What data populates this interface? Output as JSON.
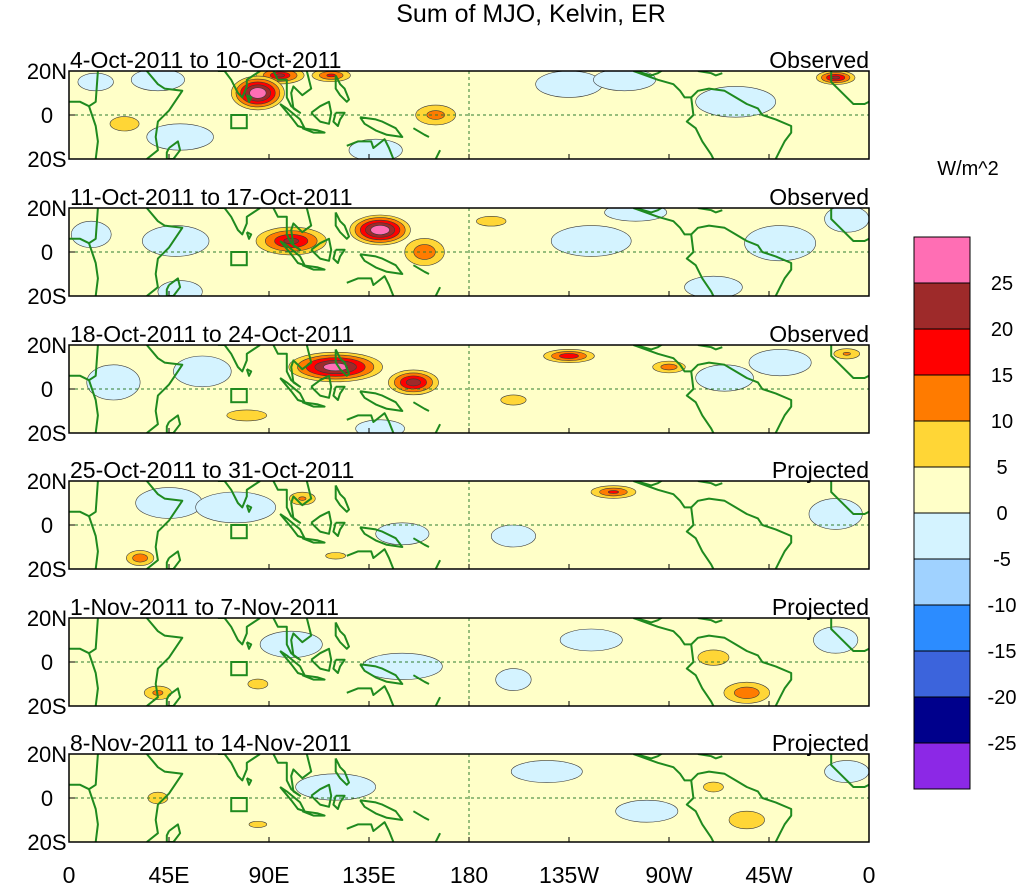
{
  "title": "Sum of MJO, Kelvin, ER",
  "units": "W/m^2",
  "panels": [
    {
      "period": "4-Oct-2011 to 10-Oct-2011",
      "status": "Observed"
    },
    {
      "period": "11-Oct-2011 to 17-Oct-2011",
      "status": "Observed"
    },
    {
      "period": "18-Oct-2011 to 24-Oct-2011",
      "status": "Observed"
    },
    {
      "period": "25-Oct-2011 to 31-Oct-2011",
      "status": "Projected"
    },
    {
      "period": "1-Nov-2011 to 7-Nov-2011",
      "status": "Projected"
    },
    {
      "period": "8-Nov-2011 to 14-Nov-2011",
      "status": "Projected"
    }
  ],
  "lat_labels": [
    "20N",
    "0",
    "20S"
  ],
  "lon_labels": [
    "0",
    "45E",
    "90E",
    "135E",
    "180",
    "135W",
    "90W",
    "45W",
    "0"
  ],
  "colorbar": {
    "colors": [
      "#ff6eb4",
      "#9e2a2a",
      "#ff0000",
      "#ff7b00",
      "#ffd636",
      "#ffffc8",
      "#d4f3ff",
      "#a0d2ff",
      "#2c8cff",
      "#3c64dc",
      "#00008c",
      "#8c28e6"
    ],
    "labels": [
      "25",
      "20",
      "15",
      "10",
      "5",
      "0",
      "-5",
      "-10",
      "-15",
      "-20",
      "-25"
    ]
  },
  "chart_data": {
    "type": "heatmap",
    "title": "Sum of MJO, Kelvin, ER",
    "units": "W/m^2",
    "x_axis": "Longitude",
    "xlim": [
      0,
      360
    ],
    "y_axis": "Latitude",
    "ylim": [
      -20,
      20
    ],
    "levels": [
      -25,
      -20,
      -15,
      -10,
      -5,
      0,
      5,
      10,
      15,
      20,
      25
    ],
    "background_value": 1,
    "anomalies": [
      [
        {
          "lon": 85,
          "lat": 10,
          "value": 32,
          "rlon": 14,
          "rlat": 9
        },
        {
          "lon": 95,
          "lat": 18,
          "value": 20,
          "rlon": 14,
          "rlat": 5
        },
        {
          "lon": 118,
          "lat": 18,
          "value": 16,
          "rlon": 12,
          "rlat": 4
        },
        {
          "lon": 165,
          "lat": 0,
          "value": 12,
          "rlon": 14,
          "rlat": 7
        },
        {
          "lon": 250,
          "lat": 16,
          "value": -28,
          "rlon": 14,
          "rlat": 5
        },
        {
          "lon": 225,
          "lat": 14,
          "value": -12,
          "rlon": 15,
          "rlat": 6
        },
        {
          "lon": 40,
          "lat": 16,
          "value": -18,
          "rlon": 12,
          "rlat": 5
        },
        {
          "lon": 12,
          "lat": 15,
          "value": -18,
          "rlon": 8,
          "rlat": 4
        },
        {
          "lon": 50,
          "lat": -10,
          "value": -10,
          "rlon": 15,
          "rlat": 6
        },
        {
          "lon": 300,
          "lat": 6,
          "value": -10,
          "rlon": 18,
          "rlat": 7
        },
        {
          "lon": 345,
          "lat": 17,
          "value": 22,
          "rlon": 11,
          "rlat": 4
        },
        {
          "lon": 138,
          "lat": -16,
          "value": -14,
          "rlon": 12,
          "rlat": 5
        },
        {
          "lon": 25,
          "lat": -4,
          "value": 9,
          "rlon": 12,
          "rlat": 6
        }
      ],
      [
        {
          "lon": 100,
          "lat": 5,
          "value": 22,
          "rlon": 20,
          "rlat": 8
        },
        {
          "lon": 140,
          "lat": 10,
          "value": 32,
          "rlon": 16,
          "rlat": 8
        },
        {
          "lon": 160,
          "lat": 0,
          "value": 14,
          "rlon": 13,
          "rlat": 9
        },
        {
          "lon": 190,
          "lat": 14,
          "value": 7,
          "rlon": 15,
          "rlat": 5
        },
        {
          "lon": 48,
          "lat": 5,
          "value": -15,
          "rlon": 15,
          "rlat": 7
        },
        {
          "lon": 50,
          "lat": -18,
          "value": -26,
          "rlon": 10,
          "rlat": 5
        },
        {
          "lon": 255,
          "lat": 18,
          "value": -24,
          "rlon": 14,
          "rlat": 4
        },
        {
          "lon": 290,
          "lat": -16,
          "value": -22,
          "rlon": 13,
          "rlat": 5
        },
        {
          "lon": 320,
          "lat": 4,
          "value": -12,
          "rlon": 16,
          "rlat": 8
        },
        {
          "lon": 235,
          "lat": 5,
          "value": -8,
          "rlon": 18,
          "rlat": 7
        },
        {
          "lon": 10,
          "lat": 8,
          "value": -10,
          "rlon": 9,
          "rlat": 6
        },
        {
          "lon": 350,
          "lat": 15,
          "value": -20,
          "rlon": 10,
          "rlat": 6
        }
      ],
      [
        {
          "lon": 120,
          "lat": 10,
          "value": 30,
          "rlon": 25,
          "rlat": 8
        },
        {
          "lon": 155,
          "lat": 3,
          "value": 24,
          "rlon": 14,
          "rlat": 7
        },
        {
          "lon": 225,
          "lat": 15,
          "value": 19,
          "rlon": 15,
          "rlat": 4
        },
        {
          "lon": 270,
          "lat": 10,
          "value": 13,
          "rlon": 11,
          "rlat": 4
        },
        {
          "lon": 60,
          "lat": 8,
          "value": -26,
          "rlon": 13,
          "rlat": 7
        },
        {
          "lon": 140,
          "lat": -18,
          "value": -25,
          "rlon": 11,
          "rlat": 4
        },
        {
          "lon": 295,
          "lat": 5,
          "value": -18,
          "rlon": 13,
          "rlat": 6
        },
        {
          "lon": 320,
          "lat": 12,
          "value": -14,
          "rlon": 14,
          "rlat": 6
        },
        {
          "lon": 20,
          "lat": 3,
          "value": -12,
          "rlon": 12,
          "rlat": 8
        },
        {
          "lon": 80,
          "lat": -12,
          "value": 8,
          "rlon": 18,
          "rlat": 5
        },
        {
          "lon": 200,
          "lat": -5,
          "value": 5,
          "rlon": 20,
          "rlat": 8
        },
        {
          "lon": 350,
          "lat": 16,
          "value": 10,
          "rlon": 10,
          "rlat": 4
        }
      ],
      [
        {
          "lon": 75,
          "lat": 8,
          "value": -22,
          "rlon": 18,
          "rlat": 7
        },
        {
          "lon": 45,
          "lat": 10,
          "value": -12,
          "rlon": 15,
          "rlat": 7
        },
        {
          "lon": 32,
          "lat": -15,
          "value": 14,
          "rlon": 9,
          "rlat": 5
        },
        {
          "lon": 105,
          "lat": 12,
          "value": 10,
          "rlon": 10,
          "rlat": 5
        },
        {
          "lon": 245,
          "lat": 15,
          "value": 16,
          "rlon": 14,
          "rlat": 4
        },
        {
          "lon": 200,
          "lat": -5,
          "value": -10,
          "rlon": 10,
          "rlat": 5
        },
        {
          "lon": 150,
          "lat": -4,
          "value": -8,
          "rlon": 12,
          "rlat": 5
        },
        {
          "lon": 345,
          "lat": 5,
          "value": -8,
          "rlon": 12,
          "rlat": 7
        },
        {
          "lon": 285,
          "lat": -12,
          "value": 4,
          "rlon": 18,
          "rlat": 6
        },
        {
          "lon": 120,
          "lat": -14,
          "value": 6,
          "rlon": 12,
          "rlat": 4
        }
      ],
      [
        {
          "lon": 305,
          "lat": -14,
          "value": 14,
          "rlon": 15,
          "rlat": 7
        },
        {
          "lon": 290,
          "lat": 2,
          "value": 8,
          "rlon": 14,
          "rlat": 7
        },
        {
          "lon": 40,
          "lat": -14,
          "value": 11,
          "rlon": 10,
          "rlat": 5
        },
        {
          "lon": 85,
          "lat": -10,
          "value": 6,
          "rlon": 12,
          "rlat": 6
        },
        {
          "lon": 150,
          "lat": -2,
          "value": -8,
          "rlon": 18,
          "rlat": 6
        },
        {
          "lon": 100,
          "lat": 8,
          "value": -7,
          "rlon": 14,
          "rlat": 6
        },
        {
          "lon": 200,
          "lat": -8,
          "value": -10,
          "rlon": 8,
          "rlat": 5
        },
        {
          "lon": 235,
          "lat": 10,
          "value": -6,
          "rlon": 14,
          "rlat": 5
        },
        {
          "lon": 20,
          "lat": 0,
          "value": 4,
          "rlon": 12,
          "rlat": 6
        },
        {
          "lon": 345,
          "lat": 10,
          "value": -5,
          "rlon": 10,
          "rlat": 6
        }
      ],
      [
        {
          "lon": 305,
          "lat": -10,
          "value": 8,
          "rlon": 16,
          "rlat": 8
        },
        {
          "lon": 290,
          "lat": 5,
          "value": 6,
          "rlon": 12,
          "rlat": 6
        },
        {
          "lon": 40,
          "lat": 0,
          "value": 6,
          "rlon": 12,
          "rlat": 7
        },
        {
          "lon": 120,
          "lat": 5,
          "value": -8,
          "rlon": 18,
          "rlat": 6
        },
        {
          "lon": 215,
          "lat": 12,
          "value": -7,
          "rlon": 16,
          "rlat": 5
        },
        {
          "lon": 85,
          "lat": -12,
          "value": 5,
          "rlon": 14,
          "rlat": 5
        },
        {
          "lon": 165,
          "lat": -12,
          "value": 4,
          "rlon": 14,
          "rlat": 5
        },
        {
          "lon": 350,
          "lat": 12,
          "value": -5,
          "rlon": 10,
          "rlat": 5
        },
        {
          "lon": 260,
          "lat": -6,
          "value": -5,
          "rlon": 14,
          "rlat": 5
        }
      ]
    ],
    "reference_box": {
      "lon_min": 73,
      "lon_max": 80,
      "lat_min": -6,
      "lat_max": 0
    }
  }
}
